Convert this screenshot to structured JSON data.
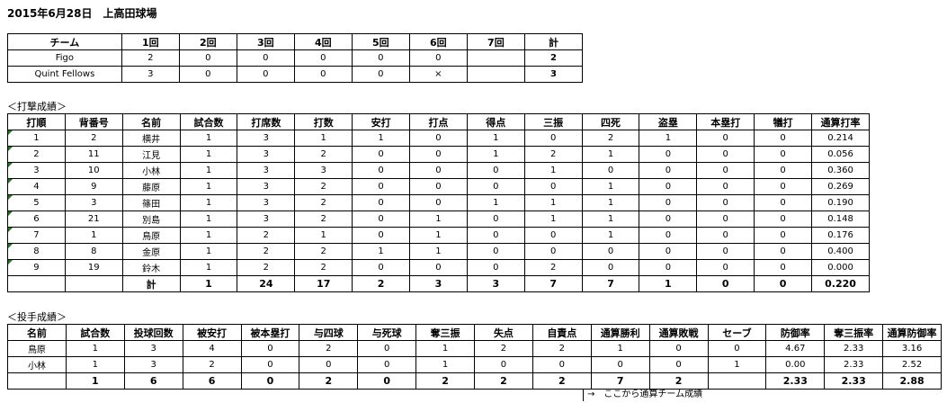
{
  "title": "2015年6月28日　上高田球場",
  "innings": {
    "headers": [
      "チーム",
      "1回",
      "2回",
      "3回",
      "4回",
      "5回",
      "6回",
      "7回",
      "計"
    ],
    "rows": [
      [
        "Figo",
        "2",
        "0",
        "0",
        "0",
        "0",
        "0",
        "",
        "2"
      ],
      [
        "Quint Fellows",
        "3",
        "0",
        "0",
        "0",
        "0",
        "×",
        "",
        "3"
      ]
    ]
  },
  "batting": {
    "label": "＜打撃成績＞",
    "headers": [
      "打順",
      "背番号",
      "名前",
      "試合数",
      "打席数",
      "打数",
      "安打",
      "打点",
      "得点",
      "三振",
      "四死",
      "盗塁",
      "本塁打",
      "犠打",
      "通算打率"
    ],
    "rows": [
      [
        "1",
        "2",
        "横井",
        "1",
        "3",
        "1",
        "1",
        "0",
        "1",
        "0",
        "2",
        "1",
        "0",
        "0",
        "0.214"
      ],
      [
        "2",
        "11",
        "江見",
        "1",
        "3",
        "2",
        "0",
        "0",
        "1",
        "2",
        "1",
        "0",
        "0",
        "0",
        "0.056"
      ],
      [
        "3",
        "10",
        "小林",
        "1",
        "3",
        "3",
        "0",
        "0",
        "0",
        "1",
        "0",
        "0",
        "0",
        "0",
        "0.360"
      ],
      [
        "4",
        "9",
        "藤原",
        "1",
        "3",
        "2",
        "0",
        "0",
        "0",
        "0",
        "1",
        "0",
        "0",
        "0",
        "0.269"
      ],
      [
        "5",
        "3",
        "篠田",
        "1",
        "3",
        "2",
        "0",
        "0",
        "1",
        "1",
        "1",
        "0",
        "0",
        "0",
        "0.190"
      ],
      [
        "6",
        "21",
        "別島",
        "1",
        "3",
        "2",
        "0",
        "1",
        "0",
        "1",
        "1",
        "0",
        "0",
        "0",
        "0.148"
      ],
      [
        "7",
        "1",
        "鳥原",
        "1",
        "2",
        "1",
        "0",
        "1",
        "0",
        "0",
        "1",
        "0",
        "0",
        "0",
        "0.176"
      ],
      [
        "8",
        "8",
        "金原",
        "1",
        "2",
        "2",
        "1",
        "1",
        "0",
        "0",
        "0",
        "0",
        "0",
        "0",
        "0.400"
      ],
      [
        "9",
        "19",
        "鈴木",
        "1",
        "2",
        "2",
        "0",
        "0",
        "0",
        "2",
        "0",
        "0",
        "0",
        "0",
        "0.000"
      ]
    ],
    "total": [
      "",
      "",
      "計",
      "1",
      "24",
      "17",
      "2",
      "3",
      "3",
      "7",
      "7",
      "1",
      "0",
      "0",
      "0.220"
    ]
  },
  "pitching": {
    "label": "＜投手成績＞",
    "headers": [
      "名前",
      "試合数",
      "投球回数",
      "被安打",
      "被本塁打",
      "与四球",
      "与死球",
      "奪三振",
      "失点",
      "自責点",
      "通算勝利",
      "通算敗戦",
      "セーブ",
      "防御率",
      "奪三振率",
      "通算防御率"
    ],
    "rows": [
      [
        "鳥原",
        "1",
        "3",
        "4",
        "0",
        "2",
        "0",
        "1",
        "2",
        "2",
        "1",
        "0",
        "0",
        "4.67",
        "2.33",
        "3.16"
      ],
      [
        "小林",
        "1",
        "3",
        "2",
        "0",
        "0",
        "0",
        "1",
        "0",
        "0",
        "0",
        "0",
        "1",
        "0.00",
        "2.33",
        "2.52"
      ]
    ],
    "total": [
      "",
      "1",
      "6",
      "6",
      "0",
      "2",
      "0",
      "2",
      "2",
      "2",
      "7",
      "2",
      "",
      "2.33",
      "2.33",
      "2.88"
    ]
  },
  "note": "→　ここから通算チーム成績",
  "colors": {
    "comment_marker": "#1a7a1a"
  }
}
